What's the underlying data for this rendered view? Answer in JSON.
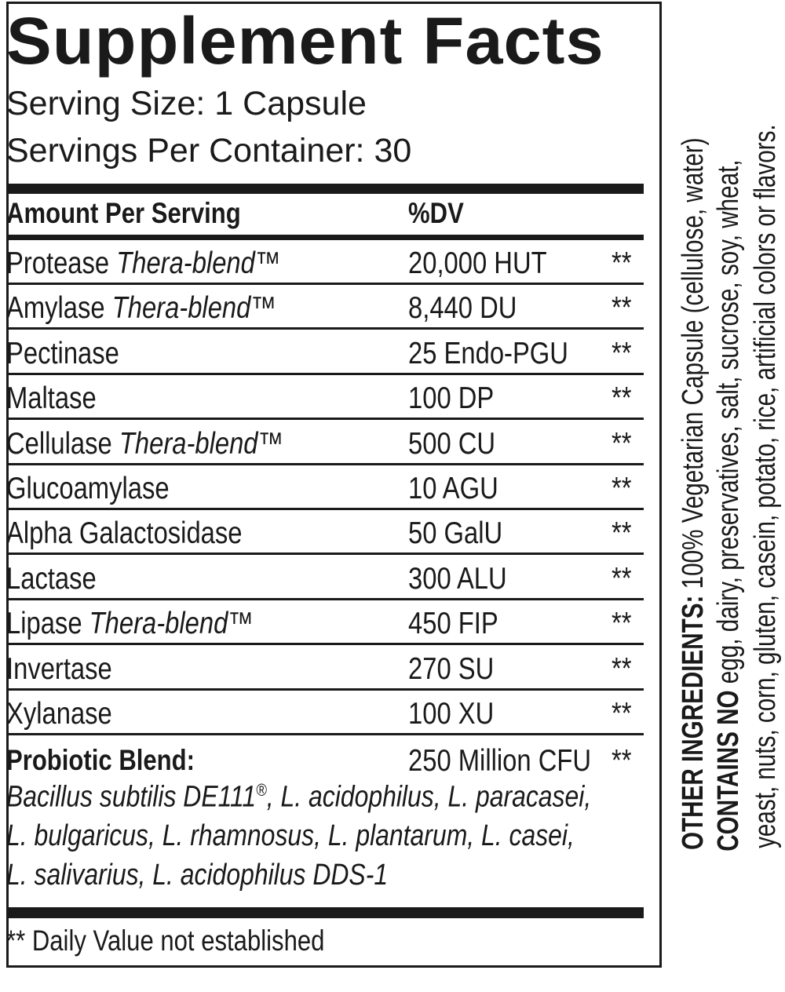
{
  "title": "Supplement Facts",
  "serving_size": "Serving Size: 1 Capsule",
  "servings_per_container": "Servings Per Container: 30",
  "header": {
    "amount": "Amount Per Serving",
    "dv": "%DV"
  },
  "rows": [
    {
      "name": "Protease ",
      "blend": "Thera-blend",
      "tm": "™",
      "amount": "20,000 HUT",
      "dv": "**"
    },
    {
      "name": "Amylase ",
      "blend": "Thera-blend",
      "tm": "™",
      "amount": "8,440 DU",
      "dv": "**"
    },
    {
      "name": "Pectinase",
      "blend": "",
      "tm": "",
      "amount": "25 Endo-PGU",
      "dv": "**"
    },
    {
      "name": "Maltase",
      "blend": "",
      "tm": "",
      "amount": "100 DP",
      "dv": "**"
    },
    {
      "name": "Cellulase ",
      "blend": "Thera-blend",
      "tm": "™",
      "amount": "500 CU",
      "dv": "**"
    },
    {
      "name": "Glucoamylase",
      "blend": "",
      "tm": "",
      "amount": "10 AGU",
      "dv": "**"
    },
    {
      "name": "Alpha Galactosidase",
      "blend": "",
      "tm": "",
      "amount": "50 GalU",
      "dv": "**"
    },
    {
      "name": "Lactase",
      "blend": "",
      "tm": "",
      "amount": "300 ALU",
      "dv": "**"
    },
    {
      "name": "Lipase ",
      "blend": "Thera-blend",
      "tm": "™",
      "amount": "450 FIP",
      "dv": "**"
    },
    {
      "name": "Invertase",
      "blend": "",
      "tm": "",
      "amount": "270 SU",
      "dv": "**"
    },
    {
      "name": "Xylanase",
      "blend": "",
      "tm": "",
      "amount": "100 XU",
      "dv": "**"
    }
  ],
  "probiotic": {
    "name": "Probiotic Blend:",
    "amount": "250 Million CFU",
    "dv": "**",
    "line1_a": "Bacillus subtilis DE111",
    "line1_reg": "®",
    "line1_b": ", L. acidophilus, L. paracasei,",
    "line2": "L. bulgaricus, L. rhamnosus, L. plantarum, L. casei,",
    "line3": "L. salivarius, L. acidophilus DDS-1"
  },
  "footnote": "** Daily Value not established",
  "side": {
    "other_label": "OTHER INGREDIENTS:",
    "other_text": " 100% Vegetarian Capsule (cellulose, water)",
    "contains_label": "CONTAINS NO",
    "contains_text": " egg, dairy, preservatives, salt, sucrose, soy, wheat,",
    "contains_text2": "yeast, nuts, corn, gluten, casein, potato, rice, artificial colors or flavors."
  }
}
